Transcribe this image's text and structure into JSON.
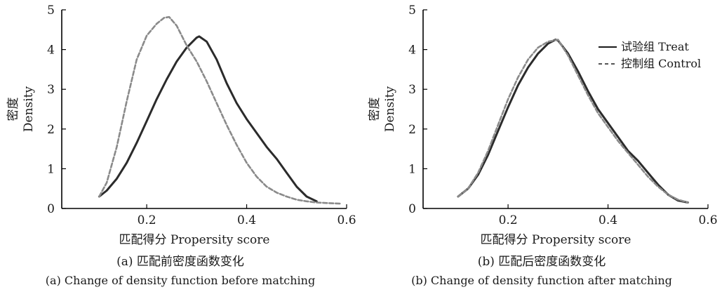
{
  "chart_data": [
    {
      "type": "line",
      "panel": "a",
      "xlabel": "匹配得分 Propersity score",
      "ylabel": [
        "密度",
        "Density"
      ],
      "x_ticks": [
        "0.2",
        "0.4",
        "0.6"
      ],
      "y_ticks": [
        "0",
        "1",
        "2",
        "3",
        "4",
        "5"
      ],
      "xlim": [
        0.03,
        0.6
      ],
      "ylim": [
        0,
        5
      ],
      "caption_cn": "(a) 匹配前密度函数变化",
      "caption_en": "(a) Change of density function before matching",
      "legend": null,
      "series": [
        {
          "key": "treat",
          "style": "solid",
          "x": [
            0.105,
            0.12,
            0.14,
            0.16,
            0.18,
            0.2,
            0.22,
            0.24,
            0.26,
            0.28,
            0.3,
            0.305,
            0.32,
            0.34,
            0.36,
            0.38,
            0.4,
            0.42,
            0.44,
            0.46,
            0.48,
            0.5,
            0.52,
            0.54
          ],
          "y": [
            0.3,
            0.45,
            0.75,
            1.15,
            1.65,
            2.2,
            2.75,
            3.25,
            3.7,
            4.05,
            4.3,
            4.33,
            4.2,
            3.75,
            3.15,
            2.65,
            2.25,
            1.9,
            1.55,
            1.25,
            0.9,
            0.55,
            0.3,
            0.18
          ]
        },
        {
          "key": "control",
          "style": "dashed",
          "x": [
            0.105,
            0.12,
            0.14,
            0.16,
            0.18,
            0.2,
            0.22,
            0.235,
            0.245,
            0.26,
            0.28,
            0.3,
            0.32,
            0.34,
            0.36,
            0.38,
            0.4,
            0.42,
            0.44,
            0.46,
            0.48,
            0.5,
            0.52,
            0.54,
            0.57,
            0.59
          ],
          "y": [
            0.3,
            0.65,
            1.55,
            2.7,
            3.75,
            4.35,
            4.65,
            4.8,
            4.82,
            4.6,
            4.1,
            3.7,
            3.2,
            2.65,
            2.1,
            1.6,
            1.15,
            0.8,
            0.55,
            0.4,
            0.3,
            0.22,
            0.18,
            0.15,
            0.13,
            0.12
          ]
        }
      ]
    },
    {
      "type": "line",
      "panel": "b",
      "xlabel": "匹配得分 Propersity score",
      "ylabel": [
        "密度",
        "Density"
      ],
      "x_ticks": [
        "0.2",
        "0.4",
        "0.6"
      ],
      "y_ticks": [
        "0",
        "1",
        "2",
        "3",
        "4",
        "5"
      ],
      "xlim": [
        0.03,
        0.6
      ],
      "ylim": [
        0,
        5
      ],
      "caption_cn": "(b) 匹配后密度函数变化",
      "caption_en": "(b) Change of density function after matching",
      "legend": [
        {
          "label": "试验组 Treat",
          "style": "solid"
        },
        {
          "label": "控制组 Control",
          "style": "dashed"
        }
      ],
      "series": [
        {
          "key": "treat",
          "style": "solid",
          "x": [
            0.1,
            0.12,
            0.14,
            0.16,
            0.18,
            0.2,
            0.22,
            0.24,
            0.26,
            0.28,
            0.295,
            0.3,
            0.32,
            0.34,
            0.36,
            0.38,
            0.4,
            0.42,
            0.44,
            0.46,
            0.48,
            0.5,
            0.52,
            0.54,
            0.56
          ],
          "y": [
            0.3,
            0.5,
            0.85,
            1.35,
            1.95,
            2.55,
            3.1,
            3.55,
            3.9,
            4.15,
            4.25,
            4.23,
            3.9,
            3.45,
            2.95,
            2.5,
            2.15,
            1.8,
            1.45,
            1.2,
            0.9,
            0.6,
            0.35,
            0.2,
            0.15
          ]
        },
        {
          "key": "control",
          "style": "dashed",
          "x": [
            0.1,
            0.12,
            0.14,
            0.16,
            0.18,
            0.2,
            0.22,
            0.24,
            0.26,
            0.28,
            0.3,
            0.32,
            0.34,
            0.36,
            0.38,
            0.4,
            0.42,
            0.44,
            0.46,
            0.48,
            0.5,
            0.52,
            0.54,
            0.56
          ],
          "y": [
            0.3,
            0.5,
            0.9,
            1.45,
            2.1,
            2.75,
            3.3,
            3.75,
            4.05,
            4.2,
            4.25,
            3.85,
            3.35,
            2.85,
            2.4,
            2.05,
            1.7,
            1.4,
            1.1,
            0.8,
            0.55,
            0.35,
            0.22,
            0.15
          ]
        }
      ]
    }
  ]
}
